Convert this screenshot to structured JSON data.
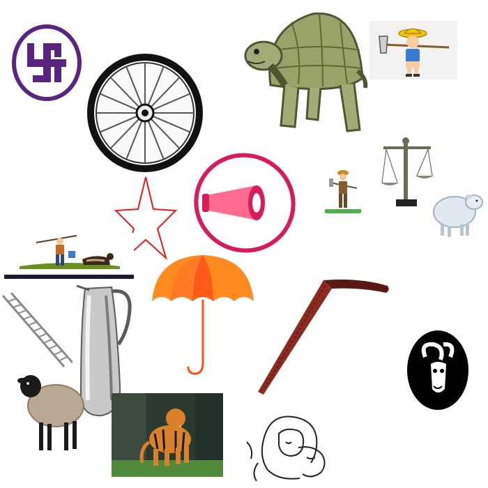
{
  "canvas": {
    "background": "#ffffff"
  },
  "items": [
    {
      "name": "swastika-symbol",
      "colors": [
        "#5b2480",
        "#ffffff"
      ]
    },
    {
      "name": "spoked-wheel",
      "colors": [
        "#111111",
        "#f5f5f5"
      ]
    },
    {
      "name": "tortoise",
      "colors": [
        "#9aa26a",
        "#6f7a45"
      ]
    },
    {
      "name": "farmer-with-hoe-card",
      "colors": [
        "#f2f2f2",
        "#f3c400",
        "#3b7bd0"
      ]
    },
    {
      "name": "red-star-outline",
      "colors": [
        "#e51a1a"
      ]
    },
    {
      "name": "megaphone-badge",
      "colors": [
        "#d81b5b",
        "#ff6b8f"
      ]
    },
    {
      "name": "small-farmer",
      "colors": [
        "#6b4a2a",
        "#4caf50"
      ]
    },
    {
      "name": "balance-scale",
      "colors": [
        "#6b6b5a",
        "#222222"
      ]
    },
    {
      "name": "white-sheep",
      "colors": [
        "#dfe7ef",
        "#9fb3c7"
      ]
    },
    {
      "name": "farmer-and-dog-banner",
      "colors": [
        "#1a1a2e",
        "#6b8e23",
        "#c96a2b"
      ]
    },
    {
      "name": "umbrella",
      "colors": [
        "#ff8a1f",
        "#ff4f1a"
      ]
    },
    {
      "name": "walking-cane",
      "colors": [
        "#5a1a12",
        "#8a2b1f"
      ]
    },
    {
      "name": "ladder",
      "colors": [
        "#8a8a8a"
      ]
    },
    {
      "name": "steel-jug",
      "colors": [
        "#c9c9c9",
        "#5a5a5a"
      ]
    },
    {
      "name": "black-faced-sheep",
      "colors": [
        "#b9a892",
        "#1a1a1a"
      ]
    },
    {
      "name": "tiger-photo",
      "colors": [
        "#2b3a2e",
        "#d9822b",
        "#4e8a3a"
      ]
    },
    {
      "name": "ram-head-symbol",
      "colors": [
        "#000000",
        "#ffffff"
      ]
    },
    {
      "name": "mother-child-sketch",
      "colors": [
        "#222222"
      ]
    }
  ]
}
